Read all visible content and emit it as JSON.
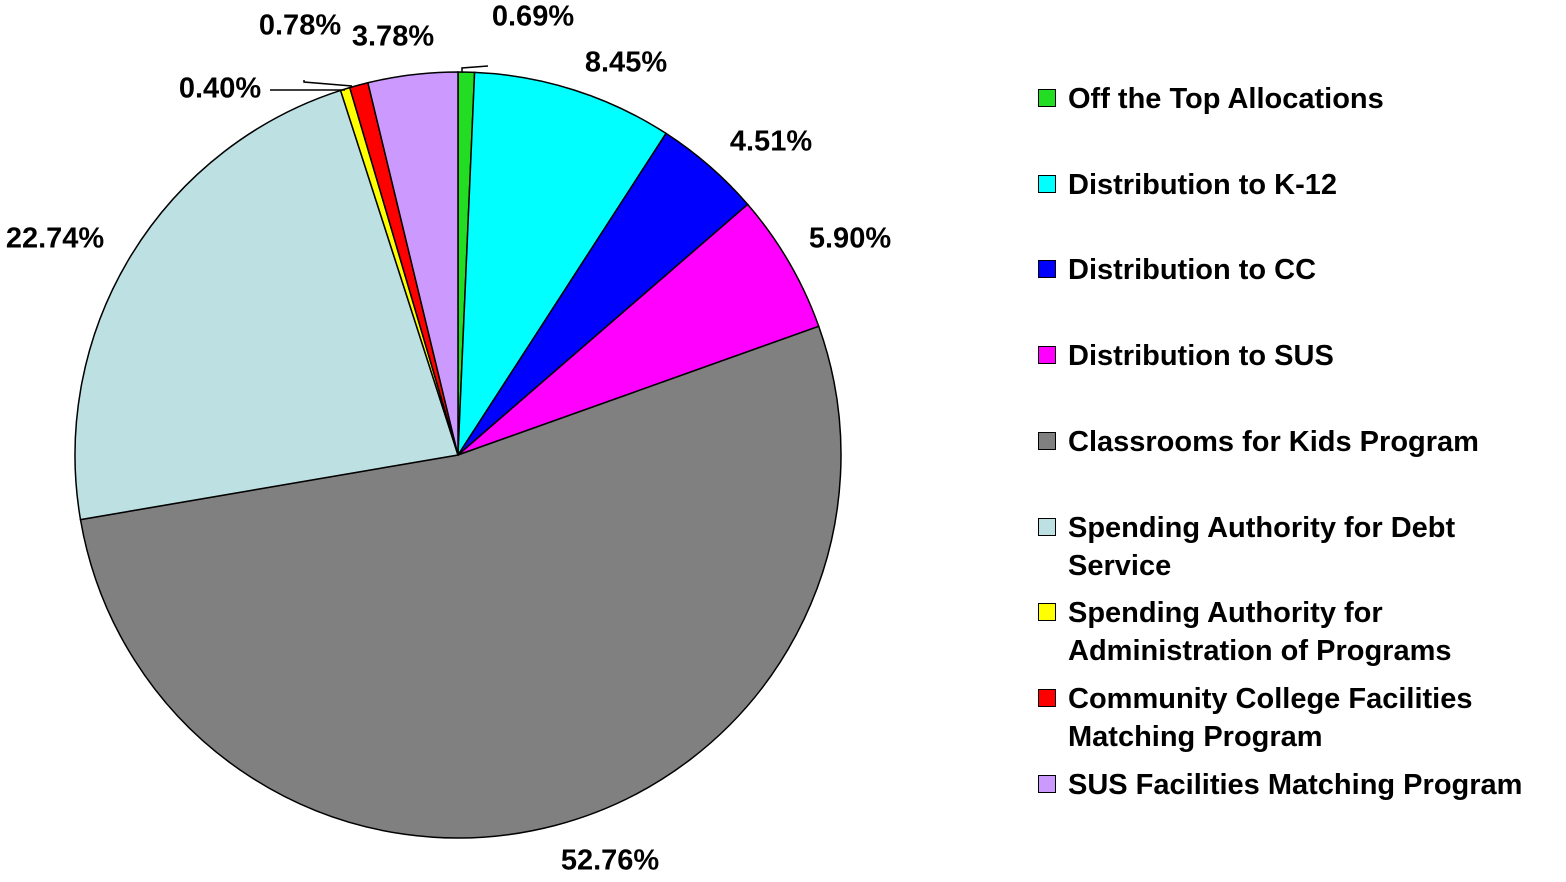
{
  "chart_data": {
    "type": "pie",
    "categories": [
      "Off the Top Allocations",
      "Distribution to K-12",
      "Distribution to CC",
      "Distribution to SUS",
      "Classrooms for Kids Program",
      "Spending Authority for Debt Service",
      "Spending Authority for Administration of Programs",
      "Community College Facilities Matching Program",
      "SUS Facilities Matching Program"
    ],
    "values": [
      0.69,
      8.45,
      4.51,
      5.9,
      52.76,
      22.74,
      0.4,
      0.78,
      3.78
    ],
    "value_labels": [
      "0.69%",
      "8.45%",
      "4.51%",
      "5.90%",
      "52.76%",
      "22.74%",
      "0.40%",
      "0.78%",
      "3.78%"
    ],
    "colors": [
      "#22dd22",
      "#00ffff",
      "#0000ff",
      "#ff00ff",
      "#808080",
      "#bde0e3",
      "#ffff00",
      "#ff0000",
      "#cc99ff"
    ],
    "legend": "right"
  }
}
